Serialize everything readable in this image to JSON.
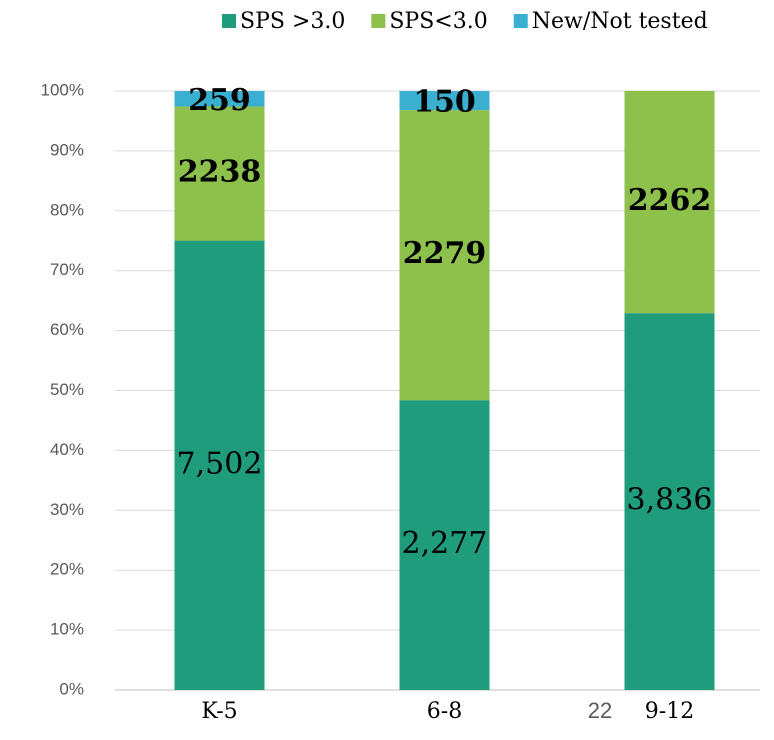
{
  "chart_data": {
    "type": "stacked_percent_bar",
    "categories": [
      "K-5",
      "6-8",
      "9-12"
    ],
    "series": [
      {
        "name": "SPS >3.0",
        "color": "#1f9c7b",
        "values": [
          7502,
          2277,
          3836
        ],
        "value_labels": [
          "7,502",
          "2,277",
          "3,836"
        ]
      },
      {
        "name": "SPS<3.0",
        "color": "#8dc14b",
        "values": [
          2238,
          2279,
          2262
        ]
      },
      {
        "name": "New/Not tested",
        "color": "#3aafd0",
        "values": [
          259,
          150,
          null
        ]
      }
    ],
    "ylim": [
      0,
      100
    ],
    "yticks": [
      {
        "value": 0,
        "label": "0%"
      },
      {
        "value": 10,
        "label": "10%"
      },
      {
        "value": 20,
        "label": "20%"
      },
      {
        "value": 30,
        "label": "30%"
      },
      {
        "value": 40,
        "label": "40%"
      },
      {
        "value": 50,
        "label": "50%"
      },
      {
        "value": 60,
        "label": "60%"
      },
      {
        "value": 70,
        "label": "70%"
      },
      {
        "value": 80,
        "label": "80%"
      },
      {
        "value": 90,
        "label": "90%"
      },
      {
        "value": 100,
        "label": "100%"
      }
    ],
    "grid": true,
    "legend": "top",
    "page_number": "22"
  }
}
